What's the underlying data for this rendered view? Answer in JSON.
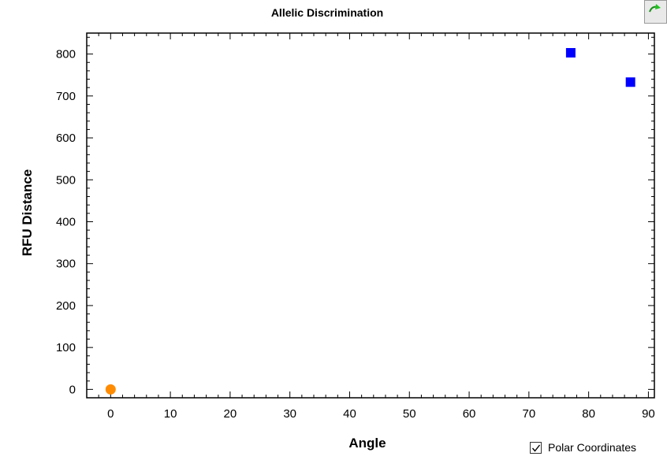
{
  "chart_data": {
    "type": "scatter",
    "title": "Allelic Discrimination",
    "xlabel": "Angle",
    "ylabel": "RFU Distance",
    "xlim": [
      -4,
      91
    ],
    "ylim": [
      -20,
      850
    ],
    "x_ticks": [
      0,
      10,
      20,
      30,
      40,
      50,
      60,
      70,
      80,
      90
    ],
    "y_ticks": [
      0,
      100,
      200,
      300,
      400,
      500,
      600,
      700,
      800
    ],
    "grid": false,
    "series": [
      {
        "marker": "circle",
        "color": "#ff8c00",
        "points": [
          {
            "x": 0,
            "y": 0
          }
        ]
      },
      {
        "marker": "square",
        "color": "#0000ff",
        "points": [
          {
            "x": 77,
            "y": 803
          },
          {
            "x": 87,
            "y": 733
          }
        ]
      }
    ]
  },
  "controls": {
    "polar_label": "Polar Coordinates",
    "polar_checked": true
  },
  "icons": {
    "corner_button": "refresh-icon"
  }
}
